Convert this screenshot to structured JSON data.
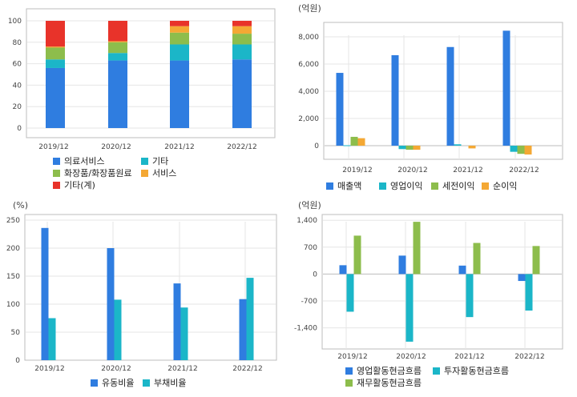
{
  "chart_data": [
    {
      "type": "bar",
      "stacked": true,
      "unit_label": "",
      "categories": [
        "2019/12",
        "2020/12",
        "2021/12",
        "2022/12"
      ],
      "ylim": [
        0,
        100
      ],
      "yticks": [
        "0",
        "20",
        "40",
        "60",
        "80",
        "100"
      ],
      "grid": true,
      "legend_position": "bottom",
      "series": [
        {
          "name": "의료서비스",
          "color": "#2f7de0",
          "values": [
            56,
            63,
            63,
            64
          ]
        },
        {
          "name": "기타",
          "color": "#1bb6c8",
          "values": [
            8,
            7,
            15,
            14
          ]
        },
        {
          "name": "화장품/화장품원료",
          "color": "#8dbd4c",
          "values": [
            11,
            10,
            11,
            10
          ]
        },
        {
          "name": "서비스",
          "color": "#f4a834",
          "values": [
            1,
            1,
            6,
            7
          ]
        },
        {
          "name": "기타(계)",
          "color": "#e8332a",
          "values": [
            24,
            19,
            5,
            5
          ]
        }
      ]
    },
    {
      "type": "bar",
      "unit_label": "(억원)",
      "categories": [
        "2019/12",
        "2020/12",
        "2021/12",
        "2022/12"
      ],
      "ylim": [
        -1000,
        9000
      ],
      "yticks": [
        "0",
        "2,000",
        "4,000",
        "6,000",
        "8,000"
      ],
      "ytick_values": [
        0,
        2000,
        4000,
        6000,
        8000
      ],
      "grid": true,
      "legend_position": "bottom",
      "series": [
        {
          "name": "매출액",
          "color": "#2f7de0",
          "values": [
            5350,
            6650,
            7250,
            8450
          ]
        },
        {
          "name": "영업이익",
          "color": "#1bb6c8",
          "values": [
            30,
            -250,
            100,
            -450
          ]
        },
        {
          "name": "세전이익",
          "color": "#8dbd4c",
          "values": [
            650,
            -300,
            0,
            -600
          ]
        },
        {
          "name": "순이익",
          "color": "#f4a834",
          "values": [
            550,
            -300,
            -200,
            -650
          ]
        }
      ]
    },
    {
      "type": "bar",
      "unit_label": "(%)",
      "categories": [
        "2019/12",
        "2020/12",
        "2021/12",
        "2022/12"
      ],
      "ylim": [
        0,
        260
      ],
      "yticks": [
        "0",
        "50",
        "100",
        "150",
        "200",
        "250"
      ],
      "ytick_values": [
        0,
        50,
        100,
        150,
        200,
        250
      ],
      "grid": true,
      "legend_position": "bottom",
      "series": [
        {
          "name": "유동비율",
          "color": "#2f7de0",
          "values": [
            236,
            200,
            137,
            109
          ]
        },
        {
          "name": "부채비율",
          "color": "#1bb6c8",
          "values": [
            75,
            108,
            94,
            147
          ]
        }
      ]
    },
    {
      "type": "bar",
      "unit_label": "(억원)",
      "categories": [
        "2019/12",
        "2020/12",
        "2021/12",
        "2022/12"
      ],
      "ylim": [
        -1950,
        1550
      ],
      "yticks": [
        "-1,400",
        "-700",
        "0",
        "700",
        "1,400"
      ],
      "ytick_values": [
        -1400,
        -700,
        0,
        700,
        1400
      ],
      "grid": true,
      "legend_position": "bottom",
      "series": [
        {
          "name": "영업활동현금흐름",
          "color": "#2f7de0",
          "values": [
            230,
            480,
            220,
            -180
          ]
        },
        {
          "name": "투자활동현금흐름",
          "color": "#1bb6c8",
          "values": [
            -980,
            -1760,
            -1120,
            -950
          ]
        },
        {
          "name": "재무활동현금흐름",
          "color": "#8dbd4c",
          "values": [
            1000,
            1360,
            810,
            730
          ]
        }
      ]
    }
  ]
}
